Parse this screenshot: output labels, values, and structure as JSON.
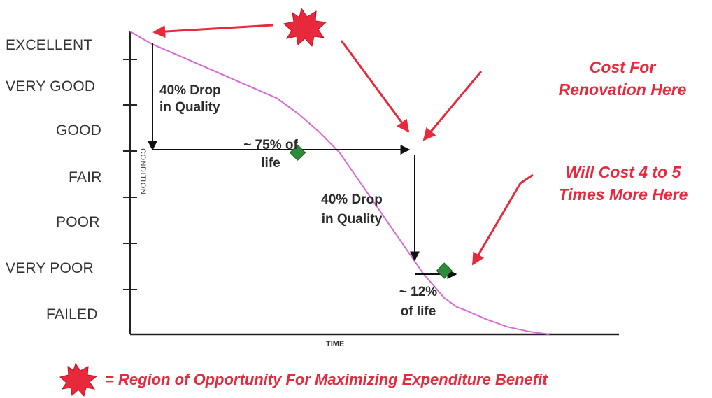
{
  "chart_data": {
    "type": "line",
    "title": "",
    "xlabel": "TIME",
    "ylabel": "CONDITION",
    "y_categories": [
      "EXCELLENT",
      "VERY GOOD",
      "GOOD",
      "FAIR",
      "POOR",
      "VERY POOR",
      "FAILED"
    ],
    "series": [
      {
        "x": [
          0,
          5,
          10,
          15,
          20,
          25,
          30,
          35,
          40,
          45,
          50,
          55,
          60,
          65,
          70,
          75,
          78,
          80,
          85,
          88,
          90,
          95,
          100
        ],
        "y": [
          100,
          96,
          93,
          90,
          87,
          84,
          81,
          78,
          73,
          67,
          60,
          50,
          40,
          30,
          20,
          12,
          9,
          8,
          5,
          3.5,
          2.5,
          1,
          0
        ],
        "color": "#d86ad8"
      }
    ],
    "markers": [
      {
        "x": 40,
        "y": 60
      },
      {
        "x": 75,
        "y": 21
      }
    ],
    "annotations": {
      "drop1_line1": "40% Drop",
      "drop1_line2": "in Quality",
      "life1_line1": "~ 75% of",
      "life1_line2": "life",
      "drop2_line1": "40% Drop",
      "drop2_line2": "in Quality",
      "life2_line1": "~ 12%",
      "life2_line2": "of life",
      "cost1_line1": "Cost For",
      "cost1_line2": "Renovation Here",
      "cost2_line1": "Will Cost 4 to 5",
      "cost2_line2": "Times More Here"
    },
    "legend": {
      "text": "= Region of Opportunity For Maximizing Expenditure Benefit"
    },
    "colors": {
      "curve": "#d86ad8",
      "marker": "#2e8b3a",
      "accent_red": "#e8283b",
      "axis": "#222222"
    }
  }
}
